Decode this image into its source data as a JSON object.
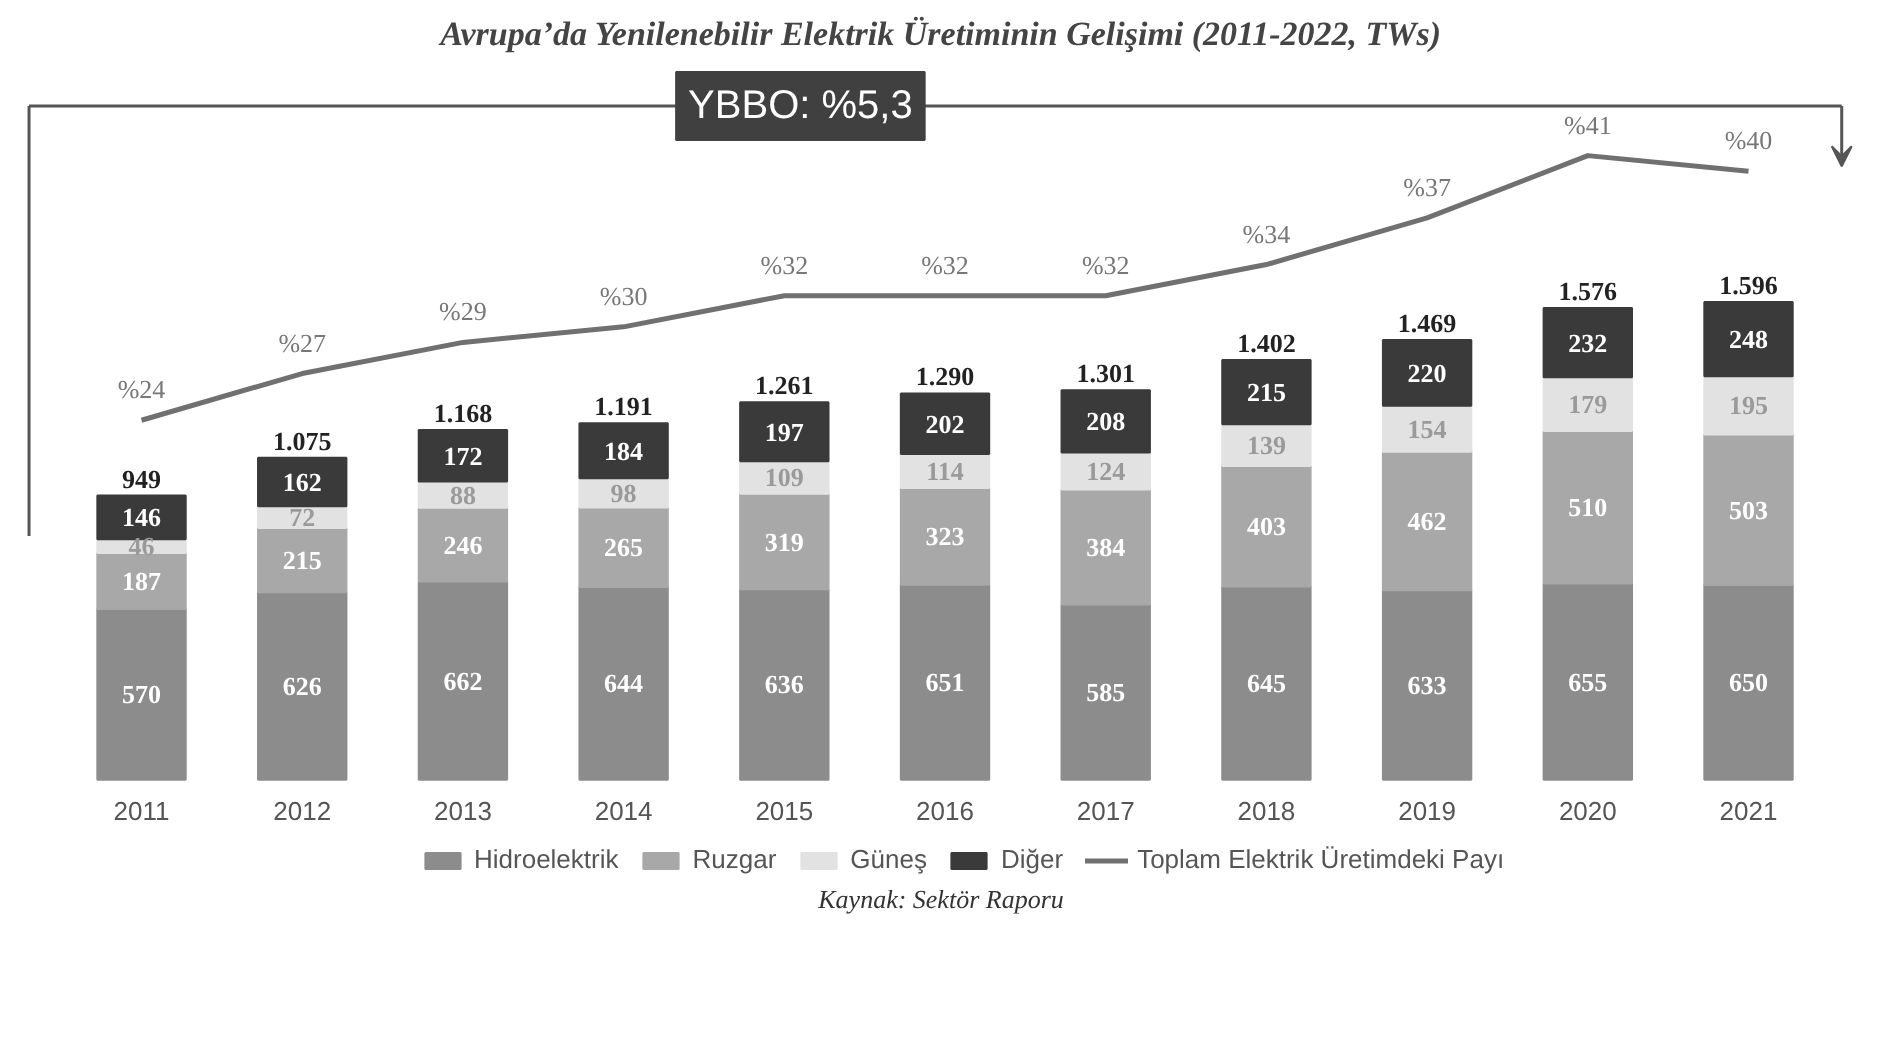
{
  "chart_data": {
    "type": "bar",
    "title": "Avrupa’da Yenilenebilir Elektrik Üretiminin Gelişimi (2011-2022, TWs)",
    "categories": [
      "2011",
      "2012",
      "2013",
      "2014",
      "2015",
      "2016",
      "2017",
      "2018",
      "2019",
      "2020",
      "2021"
    ],
    "stacked": true,
    "data_labels": true,
    "tick_labels": "x",
    "legend": "bottom",
    "series": [
      {
        "name": "Hidroelektrik",
        "color": "#8c8c8c",
        "values": [
          570,
          626,
          662,
          644,
          636,
          651,
          585,
          645,
          633,
          655,
          650
        ]
      },
      {
        "name": "Ruzgar",
        "color": "#a8a8a8",
        "values": [
          187,
          215,
          246,
          265,
          319,
          323,
          384,
          403,
          462,
          510,
          503
        ]
      },
      {
        "name": "Güneş",
        "color": "#e2e2e2",
        "values": [
          46,
          72,
          88,
          98,
          109,
          114,
          124,
          139,
          154,
          179,
          195
        ]
      },
      {
        "name": "Diğer",
        "color": "#3a3a3a",
        "values": [
          146,
          162,
          172,
          184,
          197,
          202,
          208,
          215,
          220,
          232,
          248
        ]
      },
      {
        "name": "Toplam Elektrik Üretimdeki Payı",
        "type": "line",
        "axis": "y2",
        "color": "#707070",
        "values": [
          24,
          27,
          29,
          30,
          32,
          32,
          32,
          34,
          37,
          41,
          40
        ],
        "value_labels": [
          "%24",
          "%27",
          "%29",
          "%30",
          "%32",
          "%32",
          "%32",
          "%34",
          "%37",
          "%41",
          "%40"
        ]
      }
    ],
    "totals": [
      "949",
      "1.075",
      "1.168",
      "1.191",
      "1.261",
      "1.290",
      "1.301",
      "1.402",
      "1.469",
      "1.576",
      "1.596"
    ],
    "annotations": [
      "YBBO: %5,3",
      "Kaynak: Sektör Raporu"
    ]
  }
}
